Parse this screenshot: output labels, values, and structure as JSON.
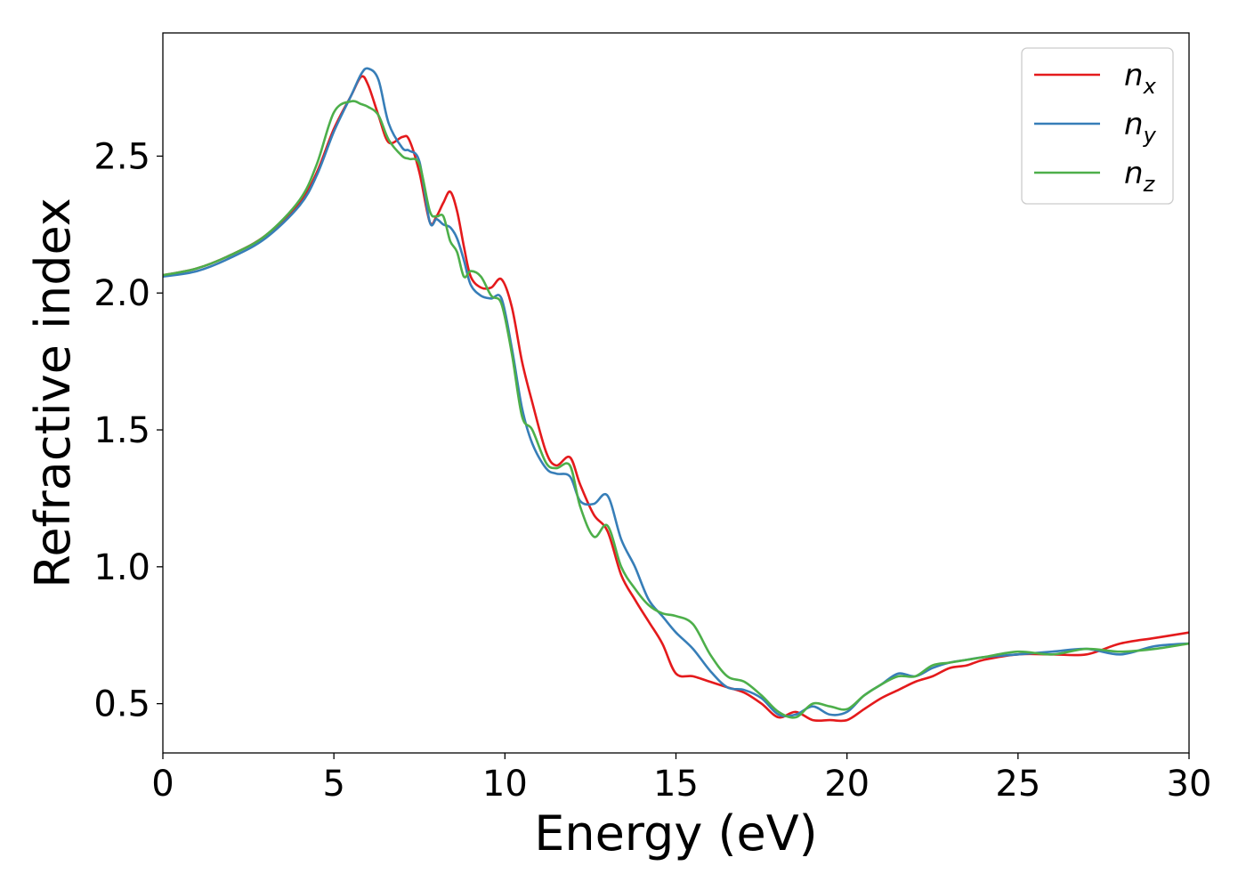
{
  "chart_data": {
    "type": "line",
    "xlabel": "Energy (eV)",
    "ylabel": "Refractive index",
    "xlim": [
      0,
      30
    ],
    "ylim": [
      0.32,
      2.95
    ],
    "xticks": [
      0,
      5,
      10,
      15,
      20,
      25,
      30
    ],
    "xtick_labels": [
      "0",
      "5",
      "10",
      "15",
      "20",
      "25",
      "30"
    ],
    "yticks": [
      0.5,
      1.0,
      1.5,
      2.0,
      2.5
    ],
    "ytick_labels": [
      "0.5",
      "1.0",
      "1.5",
      "2.0",
      "2.5"
    ],
    "grid": false,
    "legend_position": "top-right",
    "series": [
      {
        "name": "n_x",
        "base": "n",
        "sub": "x",
        "color": "#e41a1c",
        "x": [
          0,
          1,
          2,
          3,
          4,
          4.5,
          5,
          5.5,
          5.8,
          6.0,
          6.3,
          6.6,
          7.0,
          7.2,
          7.5,
          7.8,
          8.0,
          8.2,
          8.4,
          8.6,
          8.8,
          9.0,
          9.3,
          9.6,
          9.9,
          10.2,
          10.5,
          10.8,
          11.2,
          11.5,
          11.9,
          12.2,
          12.6,
          13.0,
          13.4,
          13.8,
          14.2,
          14.6,
          15.0,
          15.5,
          16.0,
          16.5,
          17.0,
          17.5,
          18.0,
          18.5,
          19.0,
          19.5,
          20.0,
          20.5,
          21.0,
          21.5,
          22.0,
          22.5,
          23.0,
          23.5,
          24.0,
          25.0,
          26.0,
          27.0,
          28.0,
          29.0,
          30.0
        ],
        "y": [
          2.065,
          2.09,
          2.14,
          2.21,
          2.33,
          2.44,
          2.6,
          2.72,
          2.79,
          2.76,
          2.65,
          2.55,
          2.57,
          2.56,
          2.44,
          2.26,
          2.28,
          2.33,
          2.37,
          2.3,
          2.17,
          2.06,
          2.02,
          2.02,
          2.05,
          1.95,
          1.75,
          1.6,
          1.42,
          1.37,
          1.4,
          1.3,
          1.19,
          1.13,
          0.97,
          0.88,
          0.8,
          0.72,
          0.61,
          0.6,
          0.58,
          0.56,
          0.54,
          0.5,
          0.45,
          0.47,
          0.44,
          0.44,
          0.44,
          0.48,
          0.52,
          0.55,
          0.58,
          0.6,
          0.63,
          0.64,
          0.66,
          0.68,
          0.68,
          0.68,
          0.72,
          0.74,
          0.76
        ]
      },
      {
        "name": "n_y",
        "base": "n",
        "sub": "y",
        "color": "#377eb8",
        "x": [
          0,
          1,
          2,
          3,
          4,
          4.5,
          5,
          5.5,
          5.8,
          6.0,
          6.3,
          6.6,
          7.0,
          7.2,
          7.5,
          7.8,
          8.0,
          8.2,
          8.4,
          8.6,
          8.8,
          9.0,
          9.3,
          9.6,
          9.9,
          10.2,
          10.5,
          10.8,
          11.2,
          11.5,
          11.9,
          12.2,
          12.6,
          13.0,
          13.4,
          13.8,
          14.2,
          14.6,
          15.0,
          15.5,
          16.0,
          16.5,
          17.0,
          17.5,
          18.0,
          18.5,
          19.0,
          19.5,
          20.0,
          20.5,
          21.0,
          21.5,
          22.0,
          22.5,
          23.0,
          23.5,
          24.0,
          25.0,
          26.0,
          27.0,
          28.0,
          29.0,
          30.0
        ],
        "y": [
          2.06,
          2.08,
          2.13,
          2.2,
          2.32,
          2.43,
          2.59,
          2.72,
          2.8,
          2.82,
          2.78,
          2.62,
          2.53,
          2.52,
          2.48,
          2.26,
          2.27,
          2.25,
          2.24,
          2.2,
          2.12,
          2.03,
          1.99,
          1.98,
          1.98,
          1.8,
          1.58,
          1.45,
          1.36,
          1.34,
          1.33,
          1.24,
          1.23,
          1.26,
          1.1,
          1.0,
          0.88,
          0.82,
          0.76,
          0.7,
          0.62,
          0.56,
          0.55,
          0.52,
          0.46,
          0.46,
          0.49,
          0.46,
          0.47,
          0.53,
          0.57,
          0.61,
          0.6,
          0.63,
          0.65,
          0.66,
          0.67,
          0.68,
          0.69,
          0.7,
          0.68,
          0.71,
          0.72
        ]
      },
      {
        "name": "n_z",
        "base": "n",
        "sub": "z",
        "color": "#4daf4a",
        "x": [
          0,
          1,
          2,
          3,
          4,
          4.5,
          5,
          5.5,
          5.8,
          6.0,
          6.3,
          6.6,
          7.0,
          7.2,
          7.5,
          7.8,
          8.0,
          8.2,
          8.4,
          8.6,
          8.8,
          9.0,
          9.3,
          9.6,
          9.9,
          10.2,
          10.5,
          10.8,
          11.2,
          11.5,
          11.9,
          12.2,
          12.6,
          13.0,
          13.4,
          13.8,
          14.2,
          14.6,
          15.0,
          15.5,
          16.0,
          16.5,
          17.0,
          17.5,
          18.0,
          18.5,
          19.0,
          19.5,
          20.0,
          20.5,
          21.0,
          21.5,
          22.0,
          22.5,
          23.0,
          23.5,
          24.0,
          25.0,
          26.0,
          27.0,
          28.0,
          29.0,
          30.0
        ],
        "y": [
          2.065,
          2.09,
          2.14,
          2.21,
          2.34,
          2.47,
          2.66,
          2.7,
          2.69,
          2.68,
          2.65,
          2.56,
          2.5,
          2.49,
          2.47,
          2.3,
          2.28,
          2.28,
          2.19,
          2.15,
          2.06,
          2.08,
          2.06,
          1.99,
          1.96,
          1.78,
          1.55,
          1.5,
          1.38,
          1.36,
          1.37,
          1.22,
          1.11,
          1.15,
          1.0,
          0.92,
          0.86,
          0.83,
          0.82,
          0.79,
          0.68,
          0.6,
          0.58,
          0.53,
          0.47,
          0.45,
          0.5,
          0.49,
          0.48,
          0.53,
          0.57,
          0.6,
          0.6,
          0.64,
          0.65,
          0.66,
          0.67,
          0.69,
          0.68,
          0.7,
          0.69,
          0.7,
          0.72
        ]
      }
    ]
  }
}
